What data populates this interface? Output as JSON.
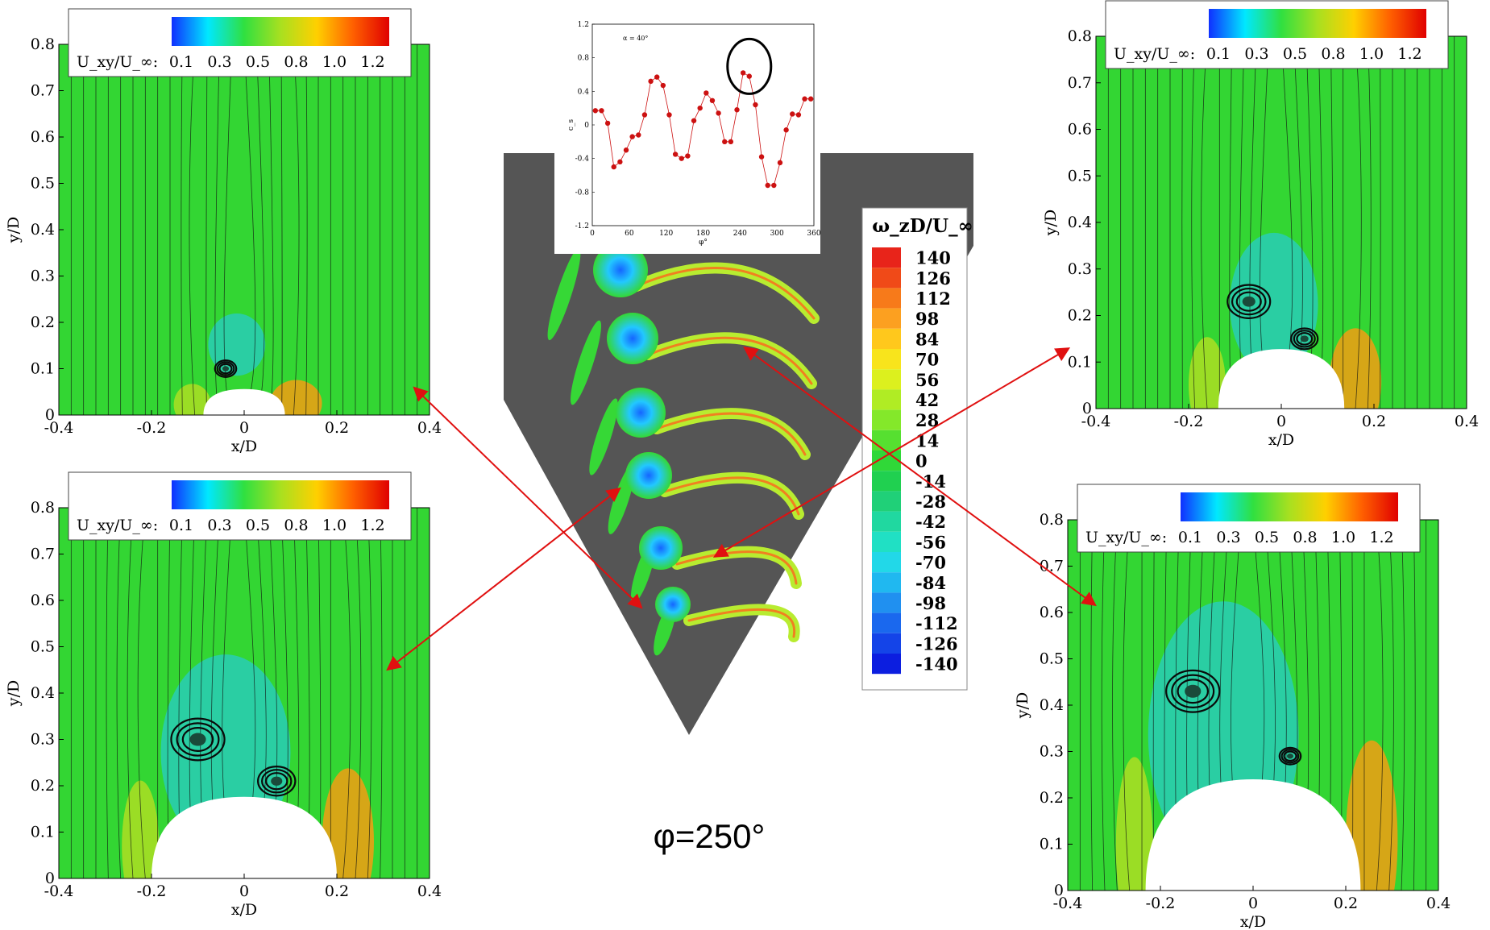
{
  "colors": {
    "background": "#ffffff",
    "arrow": "#e01010",
    "wedge": "#555555",
    "field_green": "#33d633",
    "vortex": "#0a0a0a",
    "inset_marker": "#cc1111"
  },
  "velocity_colorbar": {
    "label": "U_xy/U_∞:",
    "ticks": [
      "0.1",
      "0.3",
      "0.5",
      "0.8",
      "1.0",
      "1.2"
    ],
    "colors": [
      "#1030ff",
      "#00e8ff",
      "#30e040",
      "#a8e020",
      "#ffd000",
      "#ff6000",
      "#e00000"
    ]
  },
  "vorticity_colorbar": {
    "label": "ω_zD/U_∞",
    "levels": [
      "140",
      "126",
      "112",
      "98",
      "84",
      "70",
      "56",
      "42",
      "28",
      "14",
      "0",
      "-14",
      "-28",
      "-42",
      "-56",
      "-70",
      "-84",
      "-98",
      "-112",
      "-126",
      "-140"
    ],
    "colors": [
      "#e8241a",
      "#f04a18",
      "#f77a1a",
      "#fca020",
      "#ffc81c",
      "#f8e41c",
      "#dcf01e",
      "#b0ec24",
      "#84e82a",
      "#56e030",
      "#30d838",
      "#20d050",
      "#20d078",
      "#20d8a0",
      "#20e0c4",
      "#22d8e8",
      "#20b8f0",
      "#2090f0",
      "#1a68ee",
      "#1444e8",
      "#0c1ee0"
    ]
  },
  "panels": [
    {
      "id": "top-left",
      "xlabel": "x/D",
      "ylabel": "y/D",
      "x_ticks": [
        "-0.4",
        "-0.2",
        "0",
        "0.2",
        "0.4"
      ],
      "y_ticks": [
        "0",
        "0.1",
        "0.2",
        "0.3",
        "0.4",
        "0.5",
        "0.6",
        "0.7",
        "0.8"
      ]
    },
    {
      "id": "bottom-left",
      "xlabel": "x/D",
      "ylabel": "y/D",
      "x_ticks": [
        "-0.4",
        "-0.2",
        "0",
        "0.2",
        "0.4"
      ],
      "y_ticks": [
        "0",
        "0.1",
        "0.2",
        "0.3",
        "0.4",
        "0.5",
        "0.6",
        "0.7",
        "0.8"
      ]
    },
    {
      "id": "top-right",
      "xlabel": "x/D",
      "ylabel": "y/D",
      "x_ticks": [
        "-0.4",
        "-0.2",
        "0",
        "0.2",
        "0.4"
      ],
      "y_ticks": [
        "0",
        "0.1",
        "0.2",
        "0.3",
        "0.4",
        "0.5",
        "0.6",
        "0.7",
        "0.8"
      ]
    },
    {
      "id": "bottom-right",
      "xlabel": "x/D",
      "ylabel": "y/D",
      "x_ticks": [
        "-0.4",
        "-0.2",
        "0",
        "0.2",
        "0.4"
      ],
      "y_ticks": [
        "0",
        "0.1",
        "0.2",
        "0.3",
        "0.4",
        "0.5",
        "0.6",
        "0.7",
        "0.8"
      ]
    }
  ],
  "inset_chart": {
    "annotation": "α = 40°",
    "ylabel": "c_s",
    "xlabel": "φ°",
    "x_ticks": [
      "0",
      "60",
      "120",
      "180",
      "240",
      "300",
      "360"
    ],
    "y_ticks": [
      "1.2",
      "0.8",
      "0.4",
      "0",
      "-0.4",
      "-0.8",
      "-1.2"
    ]
  },
  "chart_data": {
    "type": "line",
    "xlabel": "φ°",
    "ylabel": "c_s",
    "xlim": [
      0,
      360
    ],
    "ylim": [
      -1.2,
      1.2
    ],
    "x": [
      5,
      15,
      25,
      35,
      45,
      55,
      65,
      75,
      85,
      95,
      105,
      115,
      125,
      135,
      145,
      155,
      165,
      175,
      185,
      195,
      205,
      215,
      225,
      235,
      245,
      255,
      265,
      275,
      285,
      295,
      305,
      315,
      325,
      335,
      345,
      355
    ],
    "series": [
      {
        "values": [
          0.17,
          0.17,
          0.02,
          -0.5,
          -0.44,
          -0.3,
          -0.14,
          -0.12,
          0.12,
          0.52,
          0.57,
          0.47,
          0.12,
          -0.35,
          -0.4,
          -0.37,
          0.05,
          0.2,
          0.38,
          0.29,
          0.14,
          -0.2,
          -0.2,
          0.18,
          0.62,
          0.58,
          0.24,
          -0.38,
          -0.72,
          -0.72,
          -0.45,
          -0.06,
          0.13,
          0.12,
          0.31,
          0.31
        ]
      }
    ],
    "highlight_circle_x": [
      250,
      260
    ]
  },
  "phase_label": "φ=250°"
}
